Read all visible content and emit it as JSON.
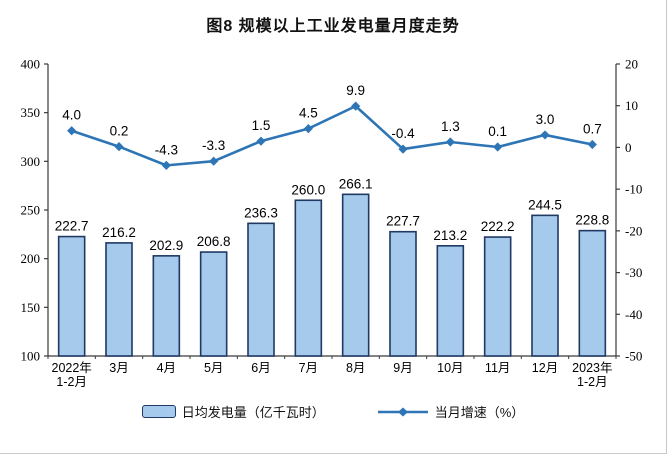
{
  "title": "图8 规模以上工业发电量月度走势",
  "chart_data": {
    "type": "combo-bar-line",
    "title": "图8 规模以上工业发电量月度走势",
    "categories": [
      "2022年\n1-2月",
      "3月",
      "4月",
      "5月",
      "6月",
      "7月",
      "8月",
      "9月",
      "10月",
      "11月",
      "12月",
      "2023年\n1-2月"
    ],
    "series": [
      {
        "name": "日均发电量（亿千瓦时）",
        "type": "bar",
        "axis": "left",
        "values": [
          222.7,
          216.2,
          202.9,
          206.8,
          236.3,
          260.0,
          266.1,
          227.7,
          213.2,
          222.2,
          244.5,
          228.8
        ]
      },
      {
        "name": "当月增速（%）",
        "type": "line",
        "axis": "right",
        "values": [
          4.0,
          0.2,
          -4.3,
          -3.3,
          1.5,
          4.5,
          9.9,
          -0.4,
          1.3,
          0.1,
          3.0,
          0.7
        ]
      }
    ],
    "left_axis": {
      "min": 100,
      "max": 400,
      "ticks": [
        400,
        350,
        300,
        250,
        200,
        150,
        100
      ]
    },
    "right_axis": {
      "min": -50,
      "max": 20,
      "ticks": [
        20,
        10,
        0,
        -10,
        -20,
        -30,
        -40,
        -50
      ]
    },
    "grid": false,
    "legend_position": "bottom"
  },
  "colors": {
    "bar_fill": "#A6CAEC",
    "bar_stroke": "#1F3864",
    "line": "#2E75B6",
    "axis": "#3a3a3a",
    "text": "#000000"
  }
}
